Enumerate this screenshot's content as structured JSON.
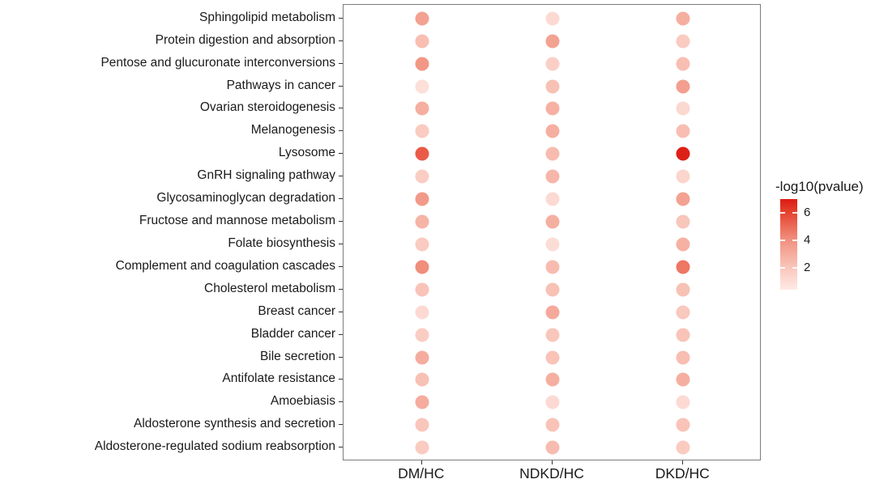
{
  "chart_data": {
    "type": "scatter",
    "subtype": "dot-matrix-enrichment-plot",
    "title": "",
    "xlabel": "",
    "ylabel": "",
    "x_categories": [
      "DM/HC",
      "NDKD/HC",
      "DKD/HC"
    ],
    "y_categories": [
      "Sphingolipid metabolism",
      "Protein digestion and absorption",
      "Pentose and glucuronate interconversions",
      "Pathways in cancer",
      "Ovarian steroidogenesis",
      "Melanogenesis",
      "Lysosome",
      "GnRH signaling pathway",
      "Glycosaminoglycan degradation",
      "Fructose and mannose metabolism",
      "Folate biosynthesis",
      "Complement and coagulation cascades",
      "Cholesterol metabolism",
      "Breast cancer",
      "Bladder cancer",
      "Bile secretion",
      "Antifolate resistance",
      "Amoebiasis",
      "Aldosterone synthesis and secretion",
      "Aldosterone-regulated sodium reabsorption"
    ],
    "series": [
      {
        "name": "DM/HC",
        "values": [
          3.4,
          2.3,
          3.8,
          0.9,
          2.9,
          1.8,
          5.4,
          1.7,
          3.7,
          2.7,
          1.8,
          4.1,
          2.1,
          1.1,
          1.7,
          3.0,
          2.2,
          3.0,
          2.0,
          1.8
        ]
      },
      {
        "name": "NDKD/HC",
        "values": [
          1.1,
          3.4,
          1.6,
          2.2,
          2.8,
          2.9,
          2.4,
          2.6,
          1.1,
          2.9,
          1.0,
          2.4,
          2.2,
          3.1,
          2.0,
          2.1,
          2.9,
          1.1,
          2.1,
          2.4
        ]
      },
      {
        "name": "DKD/HC",
        "values": [
          2.9,
          1.8,
          2.3,
          3.5,
          1.2,
          2.3,
          6.9,
          1.3,
          3.4,
          2.0,
          2.8,
          4.7,
          2.2,
          1.9,
          2.1,
          2.3,
          2.9,
          1.1,
          2.1,
          1.8
        ]
      }
    ],
    "value_label": "-log10(pvalue)",
    "legend": {
      "title": "-log10(pvalue)",
      "ticks": [
        6,
        4,
        2
      ],
      "range": [
        0.4,
        7.0
      ],
      "position": "right"
    },
    "color_scale": {
      "stops": [
        {
          "value": 0,
          "color": "#fff3f0"
        },
        {
          "value": 2,
          "color": "#f9c6bb"
        },
        {
          "value": 4,
          "color": "#f19280"
        },
        {
          "value": 6,
          "color": "#e54430"
        },
        {
          "value": 7,
          "color": "#dc1c14"
        }
      ]
    },
    "grid": false,
    "legend_ticks_on_bar": true,
    "panel_border_color": "#7d7d7d",
    "axis_text_color": "#1a1a1a",
    "background_color": "#ffffff"
  }
}
